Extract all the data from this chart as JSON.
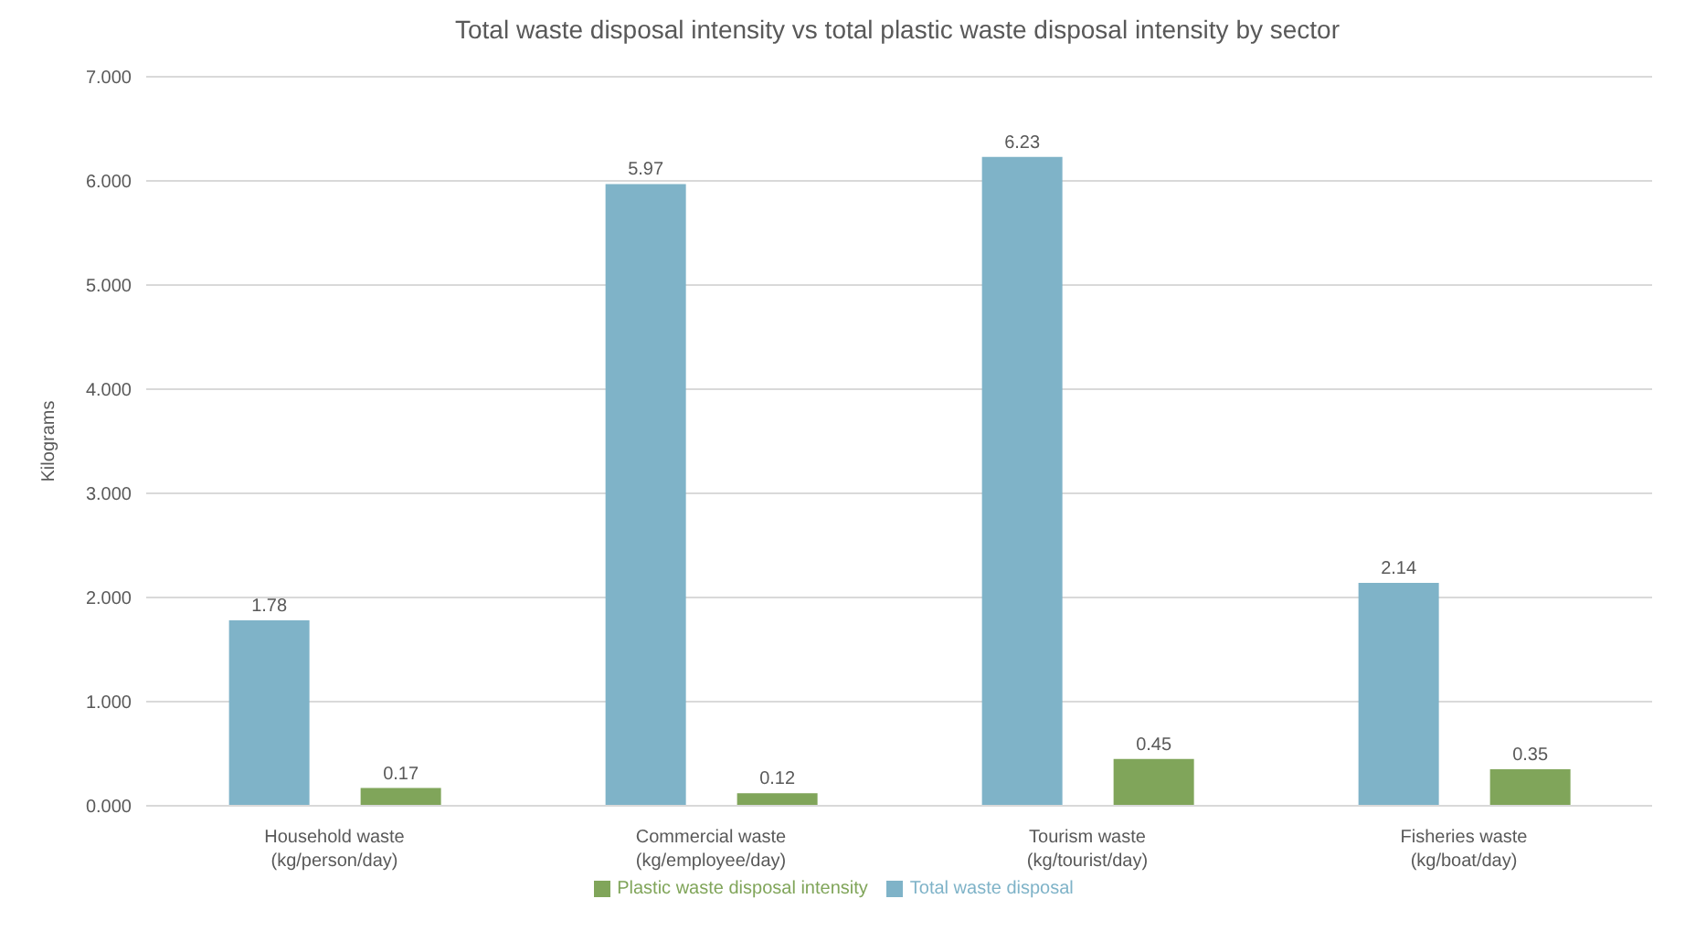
{
  "chart_data": {
    "type": "bar",
    "title": "Total waste disposal intensity vs total plastic waste disposal intensity by sector",
    "ylabel": "Kilograms",
    "categories": [
      "Household waste\n(kg/person/day)",
      "Commercial waste\n(kg/employee/day)",
      "Tourism waste\n(kg/tourist/day)",
      "Fisheries waste\n(kg/boat/day)"
    ],
    "series": [
      {
        "name": "Total waste disposal",
        "color": "#7fb3c8",
        "values": [
          1.78,
          5.97,
          6.23,
          2.14
        ]
      },
      {
        "name": "Plastic waste disposal intensity",
        "color": "#80a55a",
        "values": [
          0.17,
          0.12,
          0.45,
          0.35
        ]
      }
    ],
    "ylim": [
      0,
      7
    ],
    "yticks": [
      {
        "value": 0,
        "label": "0.000"
      },
      {
        "value": 1,
        "label": "1.000"
      },
      {
        "value": 2,
        "label": "2.000"
      },
      {
        "value": 3,
        "label": "3.000"
      },
      {
        "value": 4,
        "label": "4.000"
      },
      {
        "value": 5,
        "label": "5.000"
      },
      {
        "value": 6,
        "label": "6.000"
      },
      {
        "value": 7,
        "label": "7.000"
      }
    ],
    "grid": "y",
    "legend": "bottom",
    "data_labels": true
  }
}
